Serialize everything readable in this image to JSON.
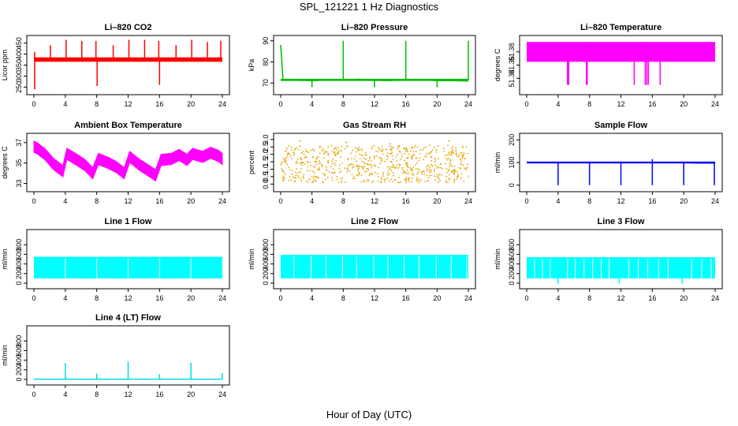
{
  "figure": {
    "title": "SPL_121221  1 Hz Diagnostics",
    "xlabel": "Hour of Day (UTC)"
  },
  "chart_data": [
    {
      "type": "line",
      "title": "Li–820 CO2",
      "ylabel": "Licor ppm",
      "color": "#ff0000",
      "xlim": [
        0,
        24
      ],
      "ylim": [
        230,
        470
      ],
      "yticks": [
        250,
        300,
        350,
        400,
        450
      ],
      "xticks": [
        0,
        4,
        8,
        12,
        16,
        20,
        24
      ],
      "x": [
        0,
        2,
        4,
        6,
        8,
        10,
        12,
        14,
        16,
        18,
        20,
        22,
        24
      ],
      "values": [
        375,
        376,
        374,
        376,
        375,
        374,
        376,
        375,
        374,
        375,
        376,
        374,
        372
      ],
      "band": [
        365,
        385
      ],
      "spikes_x": [
        0.1,
        2.1,
        4.1,
        6.1,
        7.9,
        10.1,
        12.1,
        14.1,
        15.9,
        18.1,
        20.1,
        22.1,
        23.8
      ],
      "spikes_y": [
        410,
        440,
        465,
        460,
        460,
        440,
        465,
        465,
        460,
        440,
        465,
        455,
        460
      ],
      "dips_x": [
        0.1,
        8.05,
        16.0
      ],
      "dips_y": [
        240,
        255,
        260
      ]
    },
    {
      "type": "line",
      "title": "Li–820 Pressure",
      "ylabel": "kPa",
      "color": "#00bb00",
      "xlim": [
        0,
        24
      ],
      "ylim": [
        66,
        91
      ],
      "yticks": [
        70,
        80,
        90
      ],
      "xticks": [
        0,
        4,
        8,
        12,
        16,
        20,
        24
      ],
      "x": [
        0,
        0.3,
        2,
        4,
        6,
        8,
        10,
        12,
        14,
        16,
        18,
        20,
        22,
        24
      ],
      "values": [
        88,
        71.5,
        71.3,
        71.2,
        71.4,
        71.6,
        71.8,
        71.3,
        71.2,
        71.8,
        71.5,
        71.2,
        71.1,
        71.0
      ],
      "band": [
        71,
        72
      ],
      "spikes_x": [
        8.0,
        16.0,
        24.0
      ],
      "spikes_y": [
        90,
        90,
        90
      ],
      "dips_x": [
        4.0,
        12.0,
        20.0
      ],
      "dips_y": [
        68,
        68,
        68
      ]
    },
    {
      "type": "area",
      "title": "Li–820 Temperature",
      "ylabel": "degrees C",
      "color": "#ff00ff",
      "xlim": [
        0,
        24
      ],
      "ylim": [
        51.32,
        51.4
      ],
      "yticks": [
        51.34,
        51.36,
        51.38
      ],
      "xticks": [
        0,
        4,
        8,
        12,
        16,
        20,
        24
      ],
      "band": [
        51.365,
        51.395
      ],
      "dips_x": [
        5.2,
        5.35,
        7.6,
        7.7,
        13.7,
        15.1,
        15.3,
        15.5,
        17.0
      ],
      "dips_y": [
        51.33,
        51.33,
        51.33,
        51.33,
        51.33,
        51.33,
        51.33,
        51.33,
        51.33
      ]
    },
    {
      "type": "line",
      "title": "Ambient Box Temperature",
      "ylabel": "degrees C",
      "color": "#ff00ff",
      "xlim": [
        0,
        24
      ],
      "ylim": [
        32.5,
        37.6
      ],
      "yticks": [
        33,
        35,
        37
      ],
      "xticks": [
        0,
        4,
        8,
        12,
        16,
        20,
        24
      ],
      "x": [
        0,
        0.5,
        1.5,
        2.5,
        3.7,
        4.2,
        5.5,
        6.5,
        7.5,
        8.2,
        9.5,
        10.5,
        11.5,
        12.2,
        13.5,
        14.5,
        15.5,
        16.2,
        17.5,
        18.5,
        19.5,
        20.2,
        21.5,
        22.5,
        23.5,
        24
      ],
      "values": [
        36.6,
        36.4,
        35.8,
        34.9,
        34.2,
        35.9,
        35.3,
        34.8,
        34.0,
        35.4,
        35.0,
        34.6,
        34.0,
        35.6,
        34.8,
        34.3,
        33.8,
        35.3,
        35.4,
        35.8,
        35.3,
        35.9,
        35.6,
        36.0,
        35.7,
        35.4
      ],
      "band_half": 0.55
    },
    {
      "type": "scatter",
      "title": "Gas Stream RH",
      "ylabel": "percent",
      "color": "#e6a400",
      "xlim": [
        0,
        24
      ],
      "ylim": [
        -0.3,
        3.2
      ],
      "yticks": [
        0.0,
        0.5,
        1.0,
        1.5,
        2.0,
        2.5,
        3.0
      ],
      "xticks": [
        0,
        4,
        8,
        12,
        16,
        20,
        24
      ],
      "band": [
        0.1,
        2.6
      ],
      "spikes_x": [
        2.5,
        8.4,
        14.0,
        21.5
      ],
      "spikes_y": [
        2.9,
        2.8,
        2.7,
        2.9
      ]
    },
    {
      "type": "line",
      "title": "Sample Flow",
      "ylabel": "ml/min",
      "color": "#0000ee",
      "xlim": [
        0,
        24
      ],
      "ylim": [
        -15,
        215
      ],
      "yticks": [
        0,
        100,
        200
      ],
      "xticks": [
        0,
        4,
        8,
        12,
        16,
        20,
        24
      ],
      "x": [
        0,
        2,
        4,
        6,
        8,
        10,
        12,
        14,
        16,
        18,
        20,
        22,
        24
      ],
      "values": [
        101,
        100,
        100,
        99,
        100,
        100,
        99,
        100,
        100,
        99,
        99,
        98,
        98
      ],
      "band": [
        96,
        104
      ],
      "dips_x": [
        4.0,
        8.0,
        12.0,
        16.0,
        20.0,
        23.9
      ],
      "dips_y": [
        0,
        0,
        0,
        0,
        0,
        0
      ],
      "spikes_x": [
        16.0
      ],
      "spikes_y": [
        115
      ]
    },
    {
      "type": "area",
      "title": "Line 1 Flow",
      "ylabel": "ml/min",
      "color": "#00ffff",
      "xlim": [
        0,
        24
      ],
      "ylim": [
        -50,
        1050
      ],
      "yticks": [
        0,
        200,
        400,
        600,
        800
      ],
      "xticks": [
        0,
        4,
        8,
        12,
        16,
        20,
        24
      ],
      "band": [
        100,
        550
      ],
      "dips_x": [
        4.0,
        8.0,
        12.0,
        16.0,
        20.0
      ],
      "dips_y": [
        100,
        100,
        100,
        100,
        100
      ]
    },
    {
      "type": "area",
      "title": "Line 2 Flow",
      "ylabel": "ml/min",
      "color": "#00ffff",
      "xlim": [
        0,
        24
      ],
      "ylim": [
        -50,
        1050
      ],
      "yticks": [
        0,
        200,
        400,
        600,
        800
      ],
      "xticks": [
        0,
        4,
        8,
        12,
        16,
        20,
        24
      ],
      "band": [
        100,
        590
      ],
      "dips_x": [
        1.7,
        3.9,
        5.8,
        7.9,
        9.7,
        11.9,
        13.7,
        15.8,
        17.7,
        19.9,
        21.8,
        23.8
      ],
      "dips_y": [
        100,
        100,
        100,
        100,
        100,
        100,
        100,
        100,
        100,
        100,
        100,
        100
      ]
    },
    {
      "type": "area",
      "title": "Line 3 Flow",
      "ylabel": "ml/min",
      "color": "#00ffff",
      "xlim": [
        0,
        24
      ],
      "ylim": [
        -50,
        1050
      ],
      "yticks": [
        0,
        200,
        400,
        600,
        800
      ],
      "xticks": [
        0,
        4,
        8,
        12,
        16,
        20,
        24
      ],
      "band": [
        100,
        540
      ],
      "dips_x": [
        1.0,
        2.0,
        3.0,
        4.0,
        5.2,
        6.2,
        7.3,
        8.4,
        9.5,
        10.5,
        11.8,
        13.0,
        14.2,
        15.4,
        16.8,
        18.0,
        19.8,
        21.0,
        22.3,
        23.5
      ],
      "dips_y": [
        100,
        100,
        100,
        -20,
        100,
        100,
        100,
        100,
        100,
        100,
        -20,
        100,
        100,
        100,
        100,
        100,
        -20,
        100,
        100,
        100
      ]
    },
    {
      "type": "line",
      "title": "Line 4 (LT) Flow",
      "ylabel": "ml/min",
      "color": "#00dddd",
      "xlim": [
        0,
        24
      ],
      "ylim": [
        -50,
        1050
      ],
      "yticks": [
        0,
        200,
        400,
        600,
        800
      ],
      "xticks": [
        0,
        4,
        8,
        12,
        16,
        20,
        24
      ],
      "x": [
        0,
        24
      ],
      "values": [
        5,
        5
      ],
      "spikes_x": [
        4.0,
        8.0,
        12.0,
        16.0,
        20.0,
        24.0
      ],
      "spikes_y": [
        340,
        120,
        370,
        110,
        350,
        130
      ]
    }
  ]
}
